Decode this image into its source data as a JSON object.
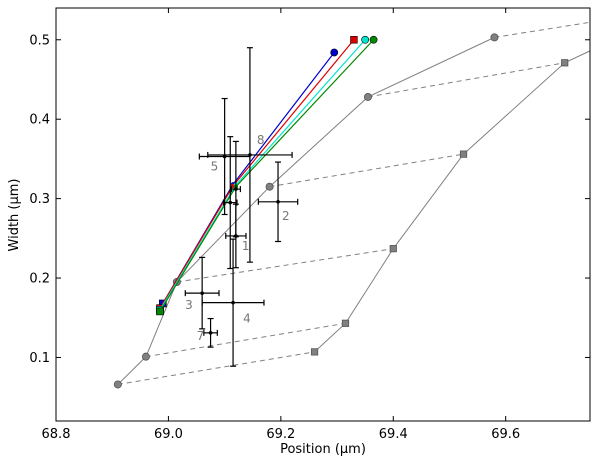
{
  "chart_data": {
    "type": "scatter",
    "xlabel": "Position (μm)",
    "ylabel": "Width (μm)",
    "xlim": [
      68.8,
      69.75
    ],
    "ylim": [
      0.02,
      0.54
    ],
    "x_ticks": [
      68.8,
      69.0,
      69.2,
      69.4,
      69.6
    ],
    "x_tick_labels": [
      "68.8",
      "69.0",
      "69.2",
      "69.4",
      "69.6"
    ],
    "y_ticks": [
      0.1,
      0.2,
      0.3,
      0.4,
      0.5
    ],
    "y_tick_labels": [
      "0.1",
      "0.2",
      "0.3",
      "0.4",
      "0.5"
    ],
    "grid": false,
    "colors": {
      "grid_series": "#808080",
      "errorbar": "#000000",
      "blue": "#0000cc",
      "red": "#dd0000",
      "cyan": "#00e5cc",
      "green": "#008800",
      "annotation": "#777777"
    },
    "gray_circle_line": [
      {
        "x": 68.91,
        "y": 0.066
      },
      {
        "x": 68.96,
        "y": 0.101
      },
      {
        "x": 69.015,
        "y": 0.195
      },
      {
        "x": 69.18,
        "y": 0.315
      },
      {
        "x": 69.355,
        "y": 0.428
      },
      {
        "x": 69.58,
        "y": 0.503
      }
    ],
    "gray_square_line": [
      {
        "x": 69.26,
        "y": 0.107
      },
      {
        "x": 69.315,
        "y": 0.143
      },
      {
        "x": 69.4,
        "y": 0.237
      },
      {
        "x": 69.525,
        "y": 0.356
      },
      {
        "x": 69.705,
        "y": 0.471
      },
      {
        "x": 69.75,
        "y": 0.486
      }
    ],
    "dashed_links": [
      [
        {
          "x": 68.91,
          "y": 0.066
        },
        {
          "x": 69.26,
          "y": 0.107
        }
      ],
      [
        {
          "x": 68.96,
          "y": 0.101
        },
        {
          "x": 69.315,
          "y": 0.143
        }
      ],
      [
        {
          "x": 69.015,
          "y": 0.195
        },
        {
          "x": 69.4,
          "y": 0.237
        }
      ],
      [
        {
          "x": 69.18,
          "y": 0.315
        },
        {
          "x": 69.525,
          "y": 0.356
        }
      ],
      [
        {
          "x": 69.355,
          "y": 0.428
        },
        {
          "x": 69.705,
          "y": 0.471
        }
      ],
      [
        {
          "x": 69.58,
          "y": 0.503
        },
        {
          "x": 69.75,
          "y": 0.522
        }
      ]
    ],
    "colored_lines": [
      {
        "color": "blue",
        "points": [
          {
            "x": 68.99,
            "y": 0.168
          },
          {
            "x": 69.115,
            "y": 0.318
          },
          {
            "x": 69.295,
            "y": 0.484
          }
        ],
        "start_marker": "square",
        "end_marker": "circle"
      },
      {
        "color": "red",
        "points": [
          {
            "x": 68.985,
            "y": 0.162
          },
          {
            "x": 69.115,
            "y": 0.316
          },
          {
            "x": 69.33,
            "y": 0.5
          }
        ],
        "start_marker": "square",
        "end_marker": "square"
      },
      {
        "color": "cyan",
        "points": [
          {
            "x": 68.985,
            "y": 0.16
          },
          {
            "x": 69.12,
            "y": 0.317
          },
          {
            "x": 69.35,
            "y": 0.5
          }
        ],
        "start_marker": "square",
        "end_marker": "circle"
      },
      {
        "color": "green",
        "points": [
          {
            "x": 68.985,
            "y": 0.158
          },
          {
            "x": 69.12,
            "y": 0.315
          },
          {
            "x": 69.365,
            "y": 0.5
          }
        ],
        "start_marker": "square",
        "end_marker": "circle"
      }
    ],
    "error_points": [
      {
        "label": "5",
        "x": 69.1,
        "y": 0.353,
        "xerr": 0.045,
        "yerr": 0.073
      },
      {
        "label": "",
        "x": 69.11,
        "y": 0.295,
        "xerr": 0.012,
        "yerr": 0.083
      },
      {
        "label": "8",
        "x": 69.145,
        "y": 0.355,
        "xerr": 0.075,
        "yerr": 0.135
      },
      {
        "label": "2",
        "x": 69.195,
        "y": 0.296,
        "xerr": 0.035,
        "yerr": 0.05
      },
      {
        "label": "1",
        "x": 69.12,
        "y": 0.253,
        "xerr": 0.018,
        "yerr": 0.04
      },
      {
        "label": "",
        "x": 69.12,
        "y": 0.312,
        "xerr": 0.008,
        "yerr": 0.06
      },
      {
        "label": "3",
        "x": 69.06,
        "y": 0.181,
        "xerr": 0.03,
        "yerr": 0.045
      },
      {
        "label": "4",
        "x": 69.115,
        "y": 0.169,
        "xerr": 0.055,
        "yerr": 0.08
      },
      {
        "label": "7",
        "x": 69.075,
        "y": 0.131,
        "xerr": 0.012,
        "yerr": 0.018
      }
    ]
  }
}
